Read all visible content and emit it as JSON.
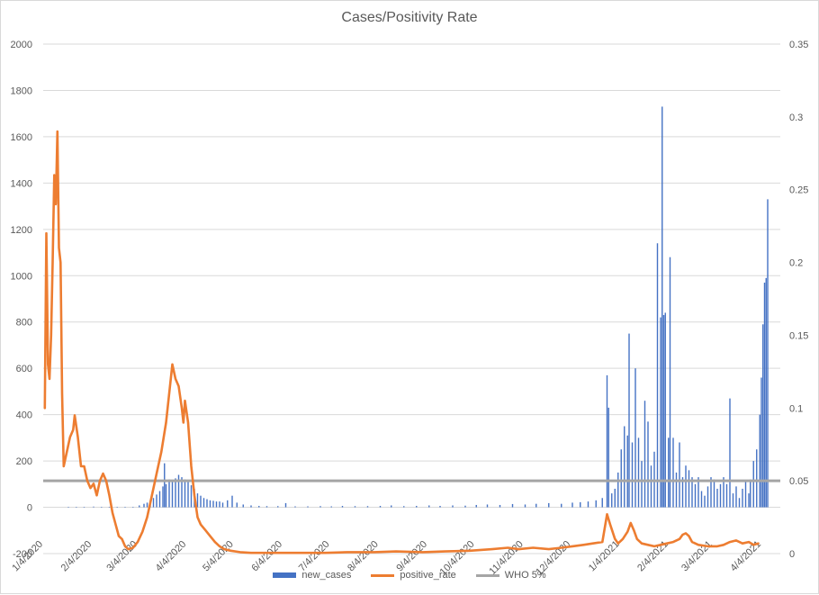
{
  "chart_data": {
    "type": "bar+line",
    "title": "Cases/Positivity Rate",
    "x_ticks": [
      "1/4/2020",
      "2/4/2020",
      "3/4/2020",
      "4/4/2020",
      "5/4/2020",
      "6/4/2020",
      "7/4/2020",
      "8/4/2020",
      "9/4/2020",
      "10/4/2020",
      "11/4/2020",
      "12/4/2020",
      "1/4/2021",
      "2/4/2021",
      "3/4/2021",
      "4/4/2021"
    ],
    "y_left_ticks": [
      "2000",
      "1800",
      "1600",
      "1400",
      "1200",
      "1000",
      "800",
      "600",
      "400",
      "200",
      "0",
      "-200"
    ],
    "y_right_ticks": [
      "0.35",
      "0.3",
      "0.25",
      "0.2",
      "0.15",
      "0.1",
      "0.05",
      "0"
    ],
    "ylim_left": [
      -200,
      2000
    ],
    "ylim_right": [
      0,
      0.35
    ],
    "grid": "horizontal",
    "legend_position": "bottom",
    "series": [
      {
        "name": "new_cases",
        "type": "bar",
        "axis": "left",
        "color": "#4472C4",
        "points": [
          [
            "2020-01-20",
            1
          ],
          [
            "2020-01-25",
            2
          ],
          [
            "2020-01-30",
            2
          ],
          [
            "2020-02-05",
            3
          ],
          [
            "2020-02-10",
            2
          ],
          [
            "2020-02-15",
            2
          ],
          [
            "2020-02-20",
            2
          ],
          [
            "2020-02-25",
            1
          ],
          [
            "2020-03-01",
            2
          ],
          [
            "2020-03-05",
            8
          ],
          [
            "2020-03-08",
            15
          ],
          [
            "2020-03-10",
            20
          ],
          [
            "2020-03-12",
            30
          ],
          [
            "2020-03-14",
            40
          ],
          [
            "2020-03-16",
            55
          ],
          [
            "2020-03-18",
            70
          ],
          [
            "2020-03-20",
            90
          ],
          [
            "2020-03-21",
            190
          ],
          [
            "2020-03-22",
            100
          ],
          [
            "2020-03-24",
            120
          ],
          [
            "2020-03-26",
            110
          ],
          [
            "2020-03-28",
            125
          ],
          [
            "2020-03-30",
            140
          ],
          [
            "2020-04-01",
            130
          ],
          [
            "2020-04-03",
            120
          ],
          [
            "2020-04-05",
            110
          ],
          [
            "2020-04-07",
            95
          ],
          [
            "2020-04-09",
            80
          ],
          [
            "2020-04-11",
            60
          ],
          [
            "2020-04-13",
            50
          ],
          [
            "2020-04-15",
            40
          ],
          [
            "2020-04-17",
            35
          ],
          [
            "2020-04-19",
            30
          ],
          [
            "2020-04-21",
            28
          ],
          [
            "2020-04-23",
            25
          ],
          [
            "2020-04-25",
            25
          ],
          [
            "2020-04-27",
            20
          ],
          [
            "2020-04-30",
            30
          ],
          [
            "2020-05-03",
            50
          ],
          [
            "2020-05-06",
            20
          ],
          [
            "2020-05-10",
            12
          ],
          [
            "2020-05-15",
            8
          ],
          [
            "2020-05-20",
            6
          ],
          [
            "2020-05-25",
            5
          ],
          [
            "2020-06-01",
            5
          ],
          [
            "2020-06-06",
            18
          ],
          [
            "2020-06-12",
            4
          ],
          [
            "2020-06-20",
            4
          ],
          [
            "2020-06-28",
            5
          ],
          [
            "2020-07-05",
            4
          ],
          [
            "2020-07-12",
            6
          ],
          [
            "2020-07-20",
            5
          ],
          [
            "2020-07-28",
            5
          ],
          [
            "2020-08-05",
            6
          ],
          [
            "2020-08-12",
            8
          ],
          [
            "2020-08-20",
            5
          ],
          [
            "2020-08-28",
            6
          ],
          [
            "2020-09-05",
            8
          ],
          [
            "2020-09-12",
            6
          ],
          [
            "2020-09-20",
            8
          ],
          [
            "2020-09-28",
            7
          ],
          [
            "2020-10-05",
            10
          ],
          [
            "2020-10-12",
            12
          ],
          [
            "2020-10-20",
            10
          ],
          [
            "2020-10-28",
            14
          ],
          [
            "2020-11-05",
            12
          ],
          [
            "2020-11-12",
            15
          ],
          [
            "2020-11-20",
            18
          ],
          [
            "2020-11-28",
            15
          ],
          [
            "2020-12-05",
            20
          ],
          [
            "2020-12-10",
            22
          ],
          [
            "2020-12-15",
            25
          ],
          [
            "2020-12-20",
            30
          ],
          [
            "2020-12-24",
            40
          ],
          [
            "2020-12-27",
            570
          ],
          [
            "2020-12-28",
            430
          ],
          [
            "2020-12-30",
            60
          ],
          [
            "2021-01-01",
            80
          ],
          [
            "2021-01-03",
            150
          ],
          [
            "2021-01-05",
            250
          ],
          [
            "2021-01-07",
            350
          ],
          [
            "2021-01-09",
            310
          ],
          [
            "2021-01-10",
            750
          ],
          [
            "2021-01-12",
            280
          ],
          [
            "2021-01-14",
            600
          ],
          [
            "2021-01-16",
            300
          ],
          [
            "2021-01-18",
            200
          ],
          [
            "2021-01-20",
            460
          ],
          [
            "2021-01-22",
            370
          ],
          [
            "2021-01-24",
            180
          ],
          [
            "2021-01-26",
            240
          ],
          [
            "2021-01-28",
            1140
          ],
          [
            "2021-01-30",
            820
          ],
          [
            "2021-01-31",
            1730
          ],
          [
            "2021-02-01",
            830
          ],
          [
            "2021-02-02",
            840
          ],
          [
            "2021-02-04",
            300
          ],
          [
            "2021-02-05",
            1080
          ],
          [
            "2021-02-07",
            300
          ],
          [
            "2021-02-09",
            150
          ],
          [
            "2021-02-11",
            280
          ],
          [
            "2021-02-13",
            130
          ],
          [
            "2021-02-15",
            180
          ],
          [
            "2021-02-17",
            160
          ],
          [
            "2021-02-19",
            130
          ],
          [
            "2021-02-21",
            100
          ],
          [
            "2021-02-23",
            130
          ],
          [
            "2021-02-25",
            70
          ],
          [
            "2021-02-27",
            50
          ],
          [
            "2021-03-01",
            90
          ],
          [
            "2021-03-03",
            130
          ],
          [
            "2021-03-05",
            120
          ],
          [
            "2021-03-07",
            80
          ],
          [
            "2021-03-09",
            100
          ],
          [
            "2021-03-11",
            130
          ],
          [
            "2021-03-13",
            100
          ],
          [
            "2021-03-15",
            470
          ],
          [
            "2021-03-17",
            60
          ],
          [
            "2021-03-19",
            90
          ],
          [
            "2021-03-21",
            40
          ],
          [
            "2021-03-23",
            80
          ],
          [
            "2021-03-25",
            110
          ],
          [
            "2021-03-27",
            60
          ],
          [
            "2021-03-28",
            120
          ],
          [
            "2021-03-30",
            200
          ],
          [
            "2021-04-01",
            250
          ],
          [
            "2021-04-03",
            400
          ],
          [
            "2021-04-04",
            560
          ],
          [
            "2021-04-05",
            790
          ],
          [
            "2021-04-06",
            970
          ],
          [
            "2021-04-07",
            990
          ],
          [
            "2021-04-08",
            1330
          ]
        ]
      },
      {
        "name": "positive_rate",
        "type": "line",
        "axis": "right",
        "color": "#ED7D31",
        "points": [
          [
            "2020-01-05",
            0.1
          ],
          [
            "2020-01-06",
            0.22
          ],
          [
            "2020-01-07",
            0.13
          ],
          [
            "2020-01-08",
            0.12
          ],
          [
            "2020-01-09",
            0.15
          ],
          [
            "2020-01-10",
            0.2
          ],
          [
            "2020-01-11",
            0.26
          ],
          [
            "2020-01-12",
            0.24
          ],
          [
            "2020-01-13",
            0.29
          ],
          [
            "2020-01-14",
            0.21
          ],
          [
            "2020-01-15",
            0.2
          ],
          [
            "2020-01-16",
            0.11
          ],
          [
            "2020-01-17",
            0.06
          ],
          [
            "2020-01-19",
            0.07
          ],
          [
            "2020-01-21",
            0.08
          ],
          [
            "2020-01-23",
            0.085
          ],
          [
            "2020-01-24",
            0.095
          ],
          [
            "2020-01-26",
            0.08
          ],
          [
            "2020-01-28",
            0.06
          ],
          [
            "2020-01-30",
            0.06
          ],
          [
            "2020-02-01",
            0.05
          ],
          [
            "2020-02-03",
            0.045
          ],
          [
            "2020-02-05",
            0.048
          ],
          [
            "2020-02-07",
            0.04
          ],
          [
            "2020-02-09",
            0.05
          ],
          [
            "2020-02-11",
            0.055
          ],
          [
            "2020-02-13",
            0.05
          ],
          [
            "2020-02-15",
            0.04
          ],
          [
            "2020-02-17",
            0.028
          ],
          [
            "2020-02-19",
            0.02
          ],
          [
            "2020-02-21",
            0.012
          ],
          [
            "2020-02-23",
            0.01
          ],
          [
            "2020-02-25",
            0.005
          ],
          [
            "2020-02-27",
            0.003
          ],
          [
            "2020-03-01",
            0.004
          ],
          [
            "2020-03-04",
            0.008
          ],
          [
            "2020-03-07",
            0.015
          ],
          [
            "2020-03-10",
            0.025
          ],
          [
            "2020-03-13",
            0.04
          ],
          [
            "2020-03-16",
            0.055
          ],
          [
            "2020-03-19",
            0.07
          ],
          [
            "2020-03-22",
            0.09
          ],
          [
            "2020-03-24",
            0.11
          ],
          [
            "2020-03-26",
            0.13
          ],
          [
            "2020-03-28",
            0.12
          ],
          [
            "2020-03-30",
            0.115
          ],
          [
            "2020-04-01",
            0.1
          ],
          [
            "2020-04-02",
            0.09
          ],
          [
            "2020-04-03",
            0.105
          ],
          [
            "2020-04-05",
            0.09
          ],
          [
            "2020-04-07",
            0.06
          ],
          [
            "2020-04-09",
            0.04
          ],
          [
            "2020-04-11",
            0.025
          ],
          [
            "2020-04-13",
            0.02
          ],
          [
            "2020-04-16",
            0.016
          ],
          [
            "2020-04-19",
            0.012
          ],
          [
            "2020-04-22",
            0.008
          ],
          [
            "2020-04-25",
            0.005
          ],
          [
            "2020-04-28",
            0.003
          ],
          [
            "2020-05-02",
            0.002
          ],
          [
            "2020-05-08",
            0.001
          ],
          [
            "2020-05-15",
            0.0005
          ],
          [
            "2020-06-01",
            0.0005
          ],
          [
            "2020-07-01",
            0.0005
          ],
          [
            "2020-07-15",
            0.001
          ],
          [
            "2020-08-01",
            0.001
          ],
          [
            "2020-08-15",
            0.0015
          ],
          [
            "2020-09-01",
            0.001
          ],
          [
            "2020-09-15",
            0.0015
          ],
          [
            "2020-10-01",
            0.002
          ],
          [
            "2020-10-15",
            0.003
          ],
          [
            "2020-10-25",
            0.004
          ],
          [
            "2020-11-01",
            0.003
          ],
          [
            "2020-11-10",
            0.004
          ],
          [
            "2020-11-20",
            0.003
          ],
          [
            "2020-11-28",
            0.004
          ],
          [
            "2020-12-05",
            0.005
          ],
          [
            "2020-12-12",
            0.006
          ],
          [
            "2020-12-18",
            0.007
          ],
          [
            "2020-12-24",
            0.008
          ],
          [
            "2020-12-27",
            0.027
          ],
          [
            "2020-12-29",
            0.02
          ],
          [
            "2021-01-01",
            0.01
          ],
          [
            "2021-01-03",
            0.007
          ],
          [
            "2021-01-06",
            0.01
          ],
          [
            "2021-01-09",
            0.015
          ],
          [
            "2021-01-11",
            0.021
          ],
          [
            "2021-01-13",
            0.016
          ],
          [
            "2021-01-15",
            0.01
          ],
          [
            "2021-01-18",
            0.007
          ],
          [
            "2021-01-22",
            0.006
          ],
          [
            "2021-01-26",
            0.005
          ],
          [
            "2021-01-30",
            0.006
          ],
          [
            "2021-02-03",
            0.007
          ],
          [
            "2021-02-07",
            0.008
          ],
          [
            "2021-02-11",
            0.01
          ],
          [
            "2021-02-13",
            0.013
          ],
          [
            "2021-02-15",
            0.014
          ],
          [
            "2021-02-17",
            0.012
          ],
          [
            "2021-02-19",
            0.008
          ],
          [
            "2021-02-23",
            0.006
          ],
          [
            "2021-03-01",
            0.005
          ],
          [
            "2021-03-07",
            0.005
          ],
          [
            "2021-03-11",
            0.006
          ],
          [
            "2021-03-15",
            0.008
          ],
          [
            "2021-03-19",
            0.009
          ],
          [
            "2021-03-23",
            0.007
          ],
          [
            "2021-03-27",
            0.008
          ],
          [
            "2021-03-30",
            0.006
          ],
          [
            "2021-04-02",
            0.007
          ]
        ]
      },
      {
        "name": "WHO 5%",
        "type": "line",
        "axis": "right",
        "color": "#A5A5A5",
        "value": 0.05
      }
    ]
  }
}
